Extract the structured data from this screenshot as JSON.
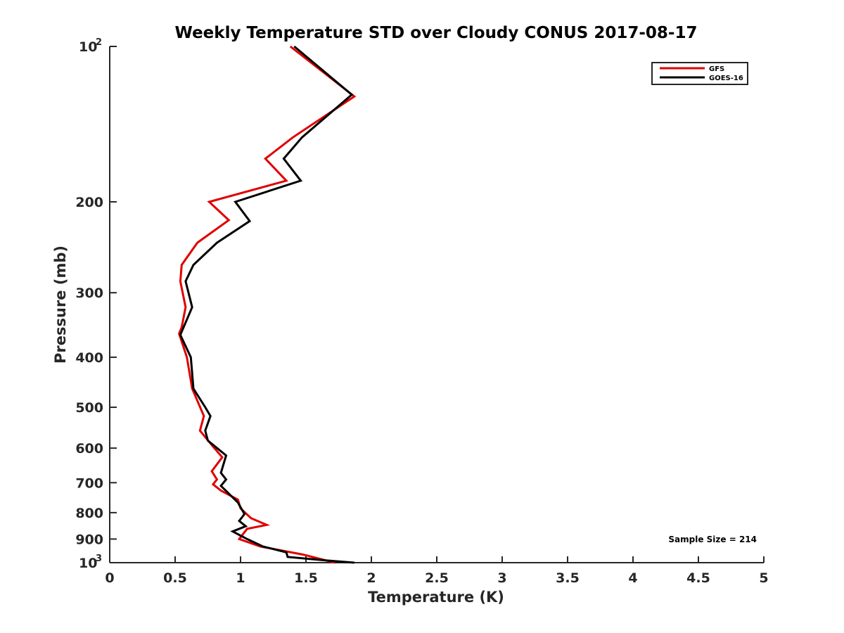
{
  "chart_data": {
    "type": "line",
    "title": "Weekly Temperature STD over Cloudy CONUS 2017-08-17",
    "xlabel": "Temperature (K)",
    "ylabel": "Pressure (mb)",
    "xlim": [
      0,
      5
    ],
    "ylim": [
      100,
      1000
    ],
    "yscale": "log",
    "yreverse": true,
    "grid": false,
    "legend_position": "top-right",
    "xticks": [
      {
        "value": 0,
        "label": "0"
      },
      {
        "value": 0.5,
        "label": "0.5"
      },
      {
        "value": 1,
        "label": "1"
      },
      {
        "value": 1.5,
        "label": "1.5"
      },
      {
        "value": 2,
        "label": "2"
      },
      {
        "value": 2.5,
        "label": "2.5"
      },
      {
        "value": 3,
        "label": "3"
      },
      {
        "value": 3.5,
        "label": "3.5"
      },
      {
        "value": 4,
        "label": "4"
      },
      {
        "value": 4.5,
        "label": "4.5"
      },
      {
        "value": 5,
        "label": "5"
      }
    ],
    "yticks": [
      {
        "value": 100,
        "base": "10",
        "exp": "2"
      },
      {
        "value": 200,
        "label": "200"
      },
      {
        "value": 300,
        "label": "300"
      },
      {
        "value": 400,
        "label": "400"
      },
      {
        "value": 500,
        "label": "500"
      },
      {
        "value": 600,
        "label": "600"
      },
      {
        "value": 700,
        "label": "700"
      },
      {
        "value": 800,
        "label": "800"
      },
      {
        "value": 900,
        "label": "900"
      },
      {
        "value": 1000,
        "base": "10",
        "exp": "3"
      }
    ],
    "annotation": "Sample Size = 214",
    "series": [
      {
        "name": "GFS",
        "color": "#e00000",
        "points": [
          {
            "t": 1.38,
            "p": 100
          },
          {
            "t": 1.87,
            "p": 125
          },
          {
            "t": 1.4,
            "p": 150
          },
          {
            "t": 1.19,
            "p": 165
          },
          {
            "t": 1.35,
            "p": 182
          },
          {
            "t": 0.76,
            "p": 200
          },
          {
            "t": 0.91,
            "p": 217
          },
          {
            "t": 0.67,
            "p": 240
          },
          {
            "t": 0.55,
            "p": 265
          },
          {
            "t": 0.54,
            "p": 285
          },
          {
            "t": 0.58,
            "p": 320
          },
          {
            "t": 0.55,
            "p": 350
          },
          {
            "t": 0.53,
            "p": 360
          },
          {
            "t": 0.59,
            "p": 400
          },
          {
            "t": 0.63,
            "p": 460
          },
          {
            "t": 0.72,
            "p": 520
          },
          {
            "t": 0.69,
            "p": 555
          },
          {
            "t": 0.8,
            "p": 600
          },
          {
            "t": 0.86,
            "p": 625
          },
          {
            "t": 0.78,
            "p": 665
          },
          {
            "t": 0.82,
            "p": 690
          },
          {
            "t": 0.79,
            "p": 705
          },
          {
            "t": 0.85,
            "p": 725
          },
          {
            "t": 0.98,
            "p": 755
          },
          {
            "t": 1.0,
            "p": 785
          },
          {
            "t": 1.08,
            "p": 820
          },
          {
            "t": 1.2,
            "p": 845
          },
          {
            "t": 1.05,
            "p": 860
          },
          {
            "t": 0.99,
            "p": 900
          },
          {
            "t": 1.15,
            "p": 930
          },
          {
            "t": 1.48,
            "p": 965
          },
          {
            "t": 1.62,
            "p": 985
          },
          {
            "t": 1.72,
            "p": 1000
          }
        ]
      },
      {
        "name": "GOES-16",
        "color": "#000000",
        "points": [
          {
            "t": 1.41,
            "p": 100
          },
          {
            "t": 1.85,
            "p": 124
          },
          {
            "t": 1.47,
            "p": 150
          },
          {
            "t": 1.33,
            "p": 165
          },
          {
            "t": 1.46,
            "p": 182
          },
          {
            "t": 0.96,
            "p": 200
          },
          {
            "t": 1.07,
            "p": 218
          },
          {
            "t": 0.82,
            "p": 240
          },
          {
            "t": 0.64,
            "p": 265
          },
          {
            "t": 0.58,
            "p": 285
          },
          {
            "t": 0.63,
            "p": 320
          },
          {
            "t": 0.54,
            "p": 362
          },
          {
            "t": 0.62,
            "p": 400
          },
          {
            "t": 0.64,
            "p": 460
          },
          {
            "t": 0.73,
            "p": 500
          },
          {
            "t": 0.77,
            "p": 520
          },
          {
            "t": 0.73,
            "p": 555
          },
          {
            "t": 0.75,
            "p": 580
          },
          {
            "t": 0.89,
            "p": 620
          },
          {
            "t": 0.85,
            "p": 670
          },
          {
            "t": 0.89,
            "p": 690
          },
          {
            "t": 0.85,
            "p": 710
          },
          {
            "t": 0.98,
            "p": 765
          },
          {
            "t": 1.03,
            "p": 805
          },
          {
            "t": 0.99,
            "p": 830
          },
          {
            "t": 1.04,
            "p": 850
          },
          {
            "t": 0.94,
            "p": 870
          },
          {
            "t": 1.05,
            "p": 900
          },
          {
            "t": 1.17,
            "p": 930
          },
          {
            "t": 1.35,
            "p": 955
          },
          {
            "t": 1.36,
            "p": 975
          },
          {
            "t": 1.65,
            "p": 990
          },
          {
            "t": 1.87,
            "p": 1000
          }
        ]
      }
    ]
  }
}
